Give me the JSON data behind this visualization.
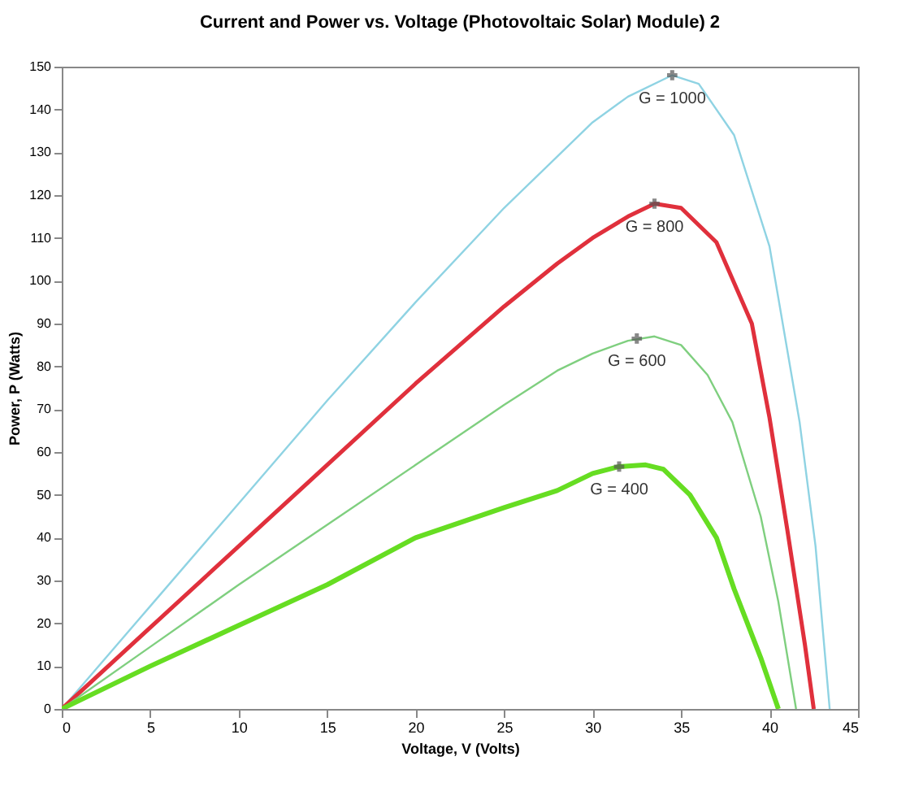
{
  "chart_data": {
    "type": "line",
    "title": "Current and Power vs. Voltage (Photovoltaic Solar) Module) 2",
    "xlabel": "Voltage, V (Volts)",
    "ylabel": "Power, P (Watts)",
    "xlim": [
      0,
      45
    ],
    "xticks": [
      0,
      5,
      10,
      15,
      20,
      25,
      30,
      35,
      40,
      45
    ],
    "ylim": [
      0,
      150
    ],
    "yticks": [
      0,
      10,
      20,
      30,
      40,
      50,
      60,
      70,
      80,
      90,
      100,
      110,
      120,
      130,
      140,
      150
    ],
    "series": [
      {
        "color": "#8fd3e3",
        "x": [
          0,
          5,
          10,
          15,
          20,
          25,
          28,
          30,
          32,
          34.5,
          36,
          38,
          40,
          41.7,
          42.6,
          43.4
        ],
        "values": [
          0,
          24,
          48,
          72,
          95,
          117,
          129,
          137,
          143,
          148,
          146,
          134,
          108,
          67,
          38,
          0
        ]
      },
      {
        "color": "#e0303c",
        "x": [
          0,
          5,
          10,
          15,
          20,
          25,
          28,
          30,
          32,
          33.5,
          35,
          37,
          39,
          40,
          41,
          42,
          42.5
        ],
        "values": [
          0,
          19,
          38,
          57,
          76,
          94,
          104,
          110,
          115,
          118,
          117,
          109,
          90,
          68,
          42,
          15,
          0
        ]
      },
      {
        "color": "#7fcf7f",
        "x": [
          0,
          5,
          10,
          15,
          20,
          25,
          28,
          30,
          32,
          33.5,
          35,
          36.5,
          37.9,
          39.5,
          40.5,
          41.5
        ],
        "values": [
          0,
          14.5,
          29,
          43,
          57,
          71,
          79,
          83,
          86,
          87,
          85,
          78,
          67,
          45,
          25,
          0
        ]
      },
      {
        "color": "#66dd22",
        "x": [
          0,
          5,
          10,
          15,
          20,
          25,
          28,
          30,
          31.5,
          33,
          34,
          35.5,
          37,
          38,
          39.5,
          40.5
        ],
        "values": [
          0,
          10,
          19.5,
          29,
          40,
          47,
          51,
          55,
          56.6,
          57,
          56,
          50,
          40,
          28,
          12,
          0
        ]
      }
    ],
    "annotations": [
      {
        "text": "G = 1000",
        "x": 34.5,
        "y": 148
      },
      {
        "text": "G = 800",
        "x": 33.5,
        "y": 118
      },
      {
        "text": "G = 600",
        "x": 32.5,
        "y": 86.5
      },
      {
        "text": "G = 400",
        "x": 31.5,
        "y": 56.6
      }
    ]
  }
}
